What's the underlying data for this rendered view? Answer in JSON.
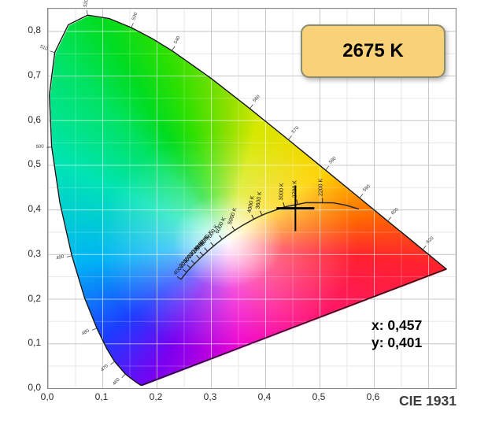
{
  "badge": {
    "label": "2675 K"
  },
  "readout": {
    "x": "x: 0,457",
    "y": "y: 0,401"
  },
  "footer": {
    "label": "CIE 1931"
  },
  "axes": {
    "x_ticks": [
      {
        "label": "0,0",
        "value": 0.0
      },
      {
        "label": "0,1",
        "value": 0.1
      },
      {
        "label": "0,2",
        "value": 0.2
      },
      {
        "label": "0,3",
        "value": 0.3
      },
      {
        "label": "0,4",
        "value": 0.4
      },
      {
        "label": "0,5",
        "value": 0.5
      },
      {
        "label": "0,6",
        "value": 0.6
      }
    ],
    "y_ticks": [
      {
        "label": "0,8",
        "value": 0.8
      },
      {
        "label": "0,7",
        "value": 0.7
      },
      {
        "label": "0,6",
        "value": 0.6
      },
      {
        "label": "0,5",
        "value": 0.5
      },
      {
        "label": "0,4",
        "value": 0.4
      },
      {
        "label": "0,3",
        "value": 0.3
      },
      {
        "label": "0,2",
        "value": 0.2
      },
      {
        "label": "0,1",
        "value": 0.1
      },
      {
        "label": "0,0",
        "value": 0.0
      }
    ]
  },
  "chart_data": {
    "type": "scatter",
    "subtype": "cie-1931-chromaticity-diagram",
    "title": "CIE 1931",
    "x_range": [
      0,
      0.75
    ],
    "y_range": [
      0,
      0.85
    ],
    "grid_major_step": 0.1,
    "grid_minor_step": 0.05,
    "measured_point": {
      "x": 0.457,
      "y": 0.401,
      "cct_label": "2675 K"
    },
    "spectral_locus": [
      [
        380,
        0.1741,
        0.005
      ],
      [
        420,
        0.1714,
        0.0051
      ],
      [
        440,
        0.1644,
        0.0109
      ],
      [
        450,
        0.1566,
        0.0177
      ],
      [
        460,
        0.144,
        0.0297
      ],
      [
        470,
        0.1241,
        0.0578
      ],
      [
        475,
        0.1096,
        0.0868
      ],
      [
        480,
        0.0913,
        0.1327
      ],
      [
        485,
        0.0687,
        0.2007
      ],
      [
        490,
        0.0454,
        0.295
      ],
      [
        495,
        0.0235,
        0.4127
      ],
      [
        500,
        0.0082,
        0.5384
      ],
      [
        505,
        0.0039,
        0.6548
      ],
      [
        510,
        0.0139,
        0.7502
      ],
      [
        515,
        0.0389,
        0.812
      ],
      [
        520,
        0.0743,
        0.8338
      ],
      [
        525,
        0.1142,
        0.8262
      ],
      [
        530,
        0.1547,
        0.8059
      ],
      [
        535,
        0.1929,
        0.7816
      ],
      [
        540,
        0.2296,
        0.7543
      ],
      [
        550,
        0.3016,
        0.6923
      ],
      [
        560,
        0.3731,
        0.6245
      ],
      [
        570,
        0.4441,
        0.5547
      ],
      [
        580,
        0.5125,
        0.4866
      ],
      [
        590,
        0.5752,
        0.4242
      ],
      [
        600,
        0.627,
        0.3725
      ],
      [
        610,
        0.6658,
        0.334
      ],
      [
        620,
        0.6915,
        0.3083
      ],
      [
        640,
        0.719,
        0.2809
      ],
      [
        700,
        0.7347,
        0.2653
      ]
    ],
    "wavelength_labels": [
      {
        "wl": 460,
        "rot": -47,
        "anchor": "end"
      },
      {
        "wl": 470,
        "rot": -42,
        "anchor": "end"
      },
      {
        "wl": 480,
        "rot": -30,
        "anchor": "end"
      },
      {
        "wl": 490,
        "rot": -14,
        "anchor": "end"
      },
      {
        "wl": 500,
        "rot": -2,
        "anchor": "end"
      },
      {
        "wl": 510,
        "rot": 20,
        "anchor": "end"
      },
      {
        "wl": 520,
        "rot": -78,
        "anchor": "start"
      },
      {
        "wl": 530,
        "rot": -70,
        "anchor": "start"
      },
      {
        "wl": 540,
        "rot": -62,
        "anchor": "start"
      },
      {
        "wl": 560,
        "rot": -48,
        "anchor": "start"
      },
      {
        "wl": 570,
        "rot": -45,
        "anchor": "start"
      },
      {
        "wl": 580,
        "rot": -44,
        "anchor": "start"
      },
      {
        "wl": 590,
        "rot": -43,
        "anchor": "start"
      },
      {
        "wl": 600,
        "rot": -42,
        "anchor": "start"
      },
      {
        "wl": 620,
        "rot": -40,
        "anchor": "start"
      }
    ],
    "planckian_locus": [
      [
        40000,
        0.2462,
        0.2417
      ],
      [
        20000,
        0.2565,
        0.2577
      ],
      [
        15000,
        0.2637,
        0.2673
      ],
      [
        12000,
        0.2714,
        0.277
      ],
      [
        10000,
        0.2807,
        0.2884
      ],
      [
        9000,
        0.2869,
        0.2956
      ],
      [
        8000,
        0.2952,
        0.3048
      ],
      [
        7000,
        0.3064,
        0.3166
      ],
      [
        6500,
        0.3135,
        0.3237
      ],
      [
        6000,
        0.3221,
        0.3318
      ],
      [
        5500,
        0.3325,
        0.3411
      ],
      [
        5000,
        0.3451,
        0.3516
      ],
      [
        4500,
        0.3608,
        0.3636
      ],
      [
        4000,
        0.3805,
        0.3768
      ],
      [
        3600,
        0.3955,
        0.3857
      ],
      [
        3500,
        0.4053,
        0.3907
      ],
      [
        3000,
        0.4369,
        0.4041
      ],
      [
        2700,
        0.461,
        0.4099
      ],
      [
        2500,
        0.477,
        0.4137
      ],
      [
        2200,
        0.5068,
        0.4135
      ],
      [
        2000,
        0.5267,
        0.4133
      ],
      [
        1800,
        0.5498,
        0.4081
      ],
      [
        1600,
        0.574,
        0.3993
      ]
    ],
    "isotherm_labels": [
      {
        "label": "40000 K",
        "T": 40000,
        "rot": -47
      },
      {
        "label": "20000 K",
        "T": 20000,
        "rot": -48
      },
      {
        "label": "15000 K",
        "T": 15000,
        "rot": -49
      },
      {
        "label": "12000 K",
        "T": 12000,
        "rot": -50
      },
      {
        "label": "10000 K",
        "T": 10000,
        "rot": -51
      },
      {
        "label": "9000 K",
        "T": 9000,
        "rot": -53
      },
      {
        "label": "8000 K",
        "T": 8000,
        "rot": -56
      },
      {
        "label": "7000 K",
        "T": 7000,
        "rot": -59
      },
      {
        "label": "6000 K",
        "T": 6000,
        "rot": -64
      },
      {
        "label": "5000 K",
        "T": 5000,
        "rot": -71
      },
      {
        "label": "4000 K",
        "T": 4000,
        "rot": -79
      },
      {
        "label": "3600 K",
        "T": 3600,
        "rot": -83
      },
      {
        "label": "3000 K",
        "T": 3000,
        "rot": -88
      },
      {
        "label": "2700 K",
        "T": 2700,
        "rot": -90
      },
      {
        "label": "2200 K",
        "T": 2200,
        "rot": -90
      }
    ]
  },
  "colors": {
    "badge_fill": "#f8d178",
    "badge_border": "#8b8b70",
    "frame": "#8a8a8a",
    "grid_major": "#c9c9c9",
    "grid_minor": "#e7e7e7",
    "locus_stroke": "#141414",
    "planck_stroke": "#2b2b2b",
    "marker": "#000000",
    "label_text": "#2a2a2a"
  }
}
